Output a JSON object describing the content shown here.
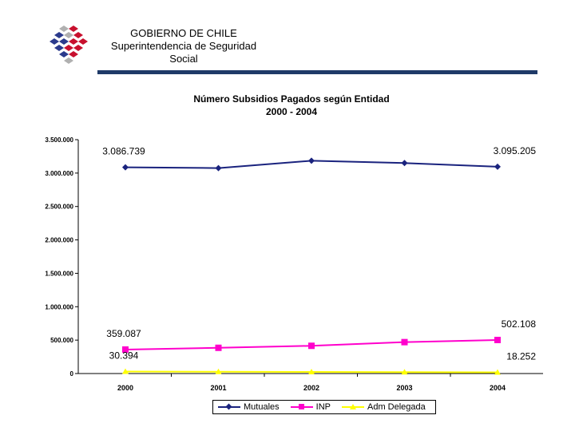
{
  "header": {
    "line1": "GOBIERNO DE CHILE",
    "line2": "Superintendencia de Seguridad",
    "line3": "Social"
  },
  "colors": {
    "header_bar": "#1f3a68",
    "logo_blue": "#2b3a8c",
    "logo_red": "#c8102e",
    "logo_grey": "#b0b0b0"
  },
  "chart_data": {
    "type": "line",
    "title_line1": "Número Subsidios Pagados según Entidad",
    "title_line2": "2000 - 2004",
    "categories": [
      "2000",
      "2001",
      "2002",
      "2003",
      "2004"
    ],
    "ylim": [
      0,
      3500000
    ],
    "yticks": [
      0,
      500000,
      1000000,
      1500000,
      2000000,
      2500000,
      3000000,
      3500000
    ],
    "ytick_labels": [
      "0",
      "500.000",
      "1.000.000",
      "1.500.000",
      "2.000.000",
      "2.500.000",
      "3.000.000",
      "3.500.000"
    ],
    "grid": false,
    "legend_position": "bottom",
    "series": [
      {
        "name": "Mutuales",
        "color": "#1a237e",
        "marker": "diamond",
        "values": [
          3086739,
          3075000,
          3185000,
          3150000,
          3095205
        ]
      },
      {
        "name": "INP",
        "color": "#ff00cc",
        "marker": "square",
        "values": [
          359087,
          385000,
          415000,
          470000,
          502108
        ]
      },
      {
        "name": "Adm Delegada",
        "color": "#ffff00",
        "marker": "triangle",
        "values": [
          30394,
          27000,
          24000,
          21000,
          18252
        ]
      }
    ],
    "annotations": [
      {
        "text": "3.086.739",
        "series": 0,
        "index": 0,
        "pos": "above-left"
      },
      {
        "text": "3.095.205",
        "series": 0,
        "index": 4,
        "pos": "above-right"
      },
      {
        "text": "359.087",
        "series": 1,
        "index": 0,
        "pos": "above-left"
      },
      {
        "text": "502.108",
        "series": 1,
        "index": 4,
        "pos": "above-right"
      },
      {
        "text": "30.394",
        "series": 2,
        "index": 0,
        "pos": "above-left"
      },
      {
        "text": "18.252",
        "series": 2,
        "index": 4,
        "pos": "above-right"
      }
    ]
  }
}
